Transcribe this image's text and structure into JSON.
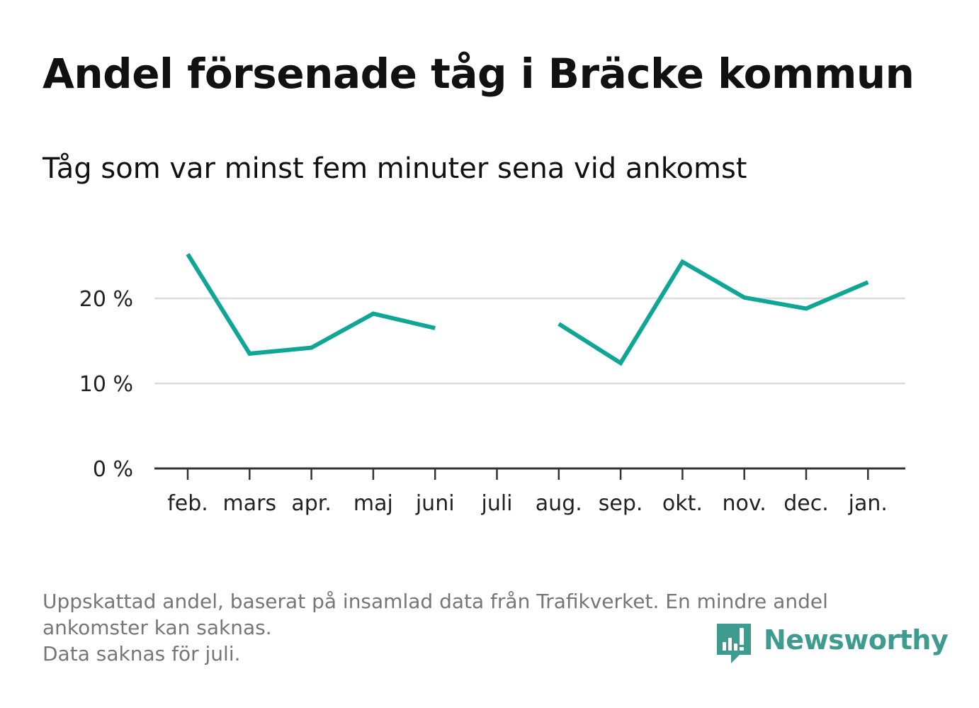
{
  "title": "Andel försenade tåg i Bräcke kommun",
  "subtitle": "Tåg som var minst fem minuter sena vid ankomst",
  "footnote": {
    "line1": "Uppskattad andel, baserat på insamlad data från Trafikverket. En mindre andel",
    "line2": "ankomster kan saknas.",
    "line3": "Data saknas för juli."
  },
  "brand": {
    "name": "Newsworthy",
    "icon": "newsworthy-logo-icon",
    "color": "#3d9b8f"
  },
  "chart_data": {
    "type": "line",
    "categories": [
      "feb.",
      "mars",
      "apr.",
      "maj",
      "juni",
      "juli",
      "aug.",
      "sep.",
      "okt.",
      "nov.",
      "dec.",
      "jan."
    ],
    "series": [
      {
        "values": [
          25.2,
          13.5,
          14.2,
          18.2,
          16.5,
          null,
          17.0,
          12.4,
          24.3,
          20.1,
          18.8,
          21.9
        ],
        "color": "#0fa696"
      }
    ],
    "yticks": [
      {
        "value": 0,
        "label": "0 %"
      },
      {
        "value": 10,
        "label": "10 %"
      },
      {
        "value": 20,
        "label": "20 %"
      }
    ],
    "ylim": [
      0,
      27
    ],
    "grid": true,
    "xlabel": "",
    "ylabel": ""
  }
}
